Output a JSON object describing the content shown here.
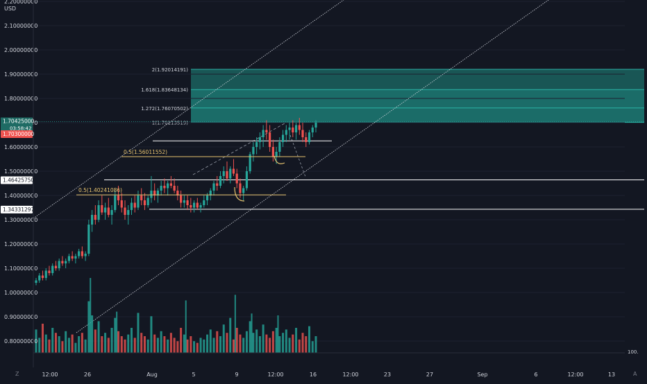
{
  "currency": "USD",
  "price_badges": {
    "last": "1.70425000",
    "countdown": "03:58:42",
    "prev": "1.70300000",
    "level_mid": "1.46425750",
    "level_low": "1.34331297"
  },
  "volume_scale_label": "100.",
  "bottom_left_icon": "Z",
  "bottom_right_icon": "A",
  "colors": {
    "background": "#131722",
    "up": "#26a69a",
    "down": "#ef5350",
    "fib_zone": "#1f8a80",
    "annotation": "#e8c46f",
    "line": "#ffffff"
  },
  "chart_data": {
    "type": "candlestick",
    "title": "",
    "ylim": [
      0.75,
      2.2
    ],
    "y_ticks": [
      0.8,
      0.9,
      1.0,
      1.1,
      1.2,
      1.3,
      1.4,
      1.5,
      1.6,
      1.7,
      1.8,
      1.9,
      2.0,
      2.1,
      2.2
    ],
    "y_tick_labels": [
      "0.80000000",
      "0.90000000",
      "1.00000000",
      "1.10000000",
      "1.20000000",
      "1.30000000",
      "1.40000000",
      "1.50000000",
      "1.60000000",
      "1.70000000",
      "1.80000000",
      "1.90000000",
      "2.00000000",
      "2.10000000",
      "2.20000000"
    ],
    "x_labels": [
      "12:00",
      "26",
      "Aug",
      "5",
      "9",
      "12:00",
      "16",
      "12:00",
      "23",
      "27",
      "Sep",
      "6",
      "12:00",
      "13"
    ],
    "fib_levels": [
      {
        "label": "1(1.70113519)",
        "value": 1.70113519
      },
      {
        "label": "1.272(1.76070502)",
        "value": 1.76070502
      },
      {
        "label": "1.618(1.83648134)",
        "value": 1.83648134
      },
      {
        "label": "2(1.92014191)",
        "value": 1.92014191
      }
    ],
    "retracements": [
      {
        "label": "0.5(1.56011552)",
        "value": 1.56011552
      },
      {
        "label": "0.5(1.40241086)",
        "value": 1.40241086
      }
    ],
    "horizontal_levels": [
      1.625,
      1.4642575,
      1.34331297
    ],
    "price_line": 1.70425,
    "volume_ylim": [
      0,
      100
    ],
    "candles": [
      [
        1.04,
        1.06,
        1.03,
        1.05
      ],
      [
        1.05,
        1.08,
        1.04,
        1.07
      ],
      [
        1.07,
        1.09,
        1.05,
        1.06
      ],
      [
        1.06,
        1.1,
        1.05,
        1.09
      ],
      [
        1.09,
        1.11,
        1.07,
        1.08
      ],
      [
        1.08,
        1.12,
        1.07,
        1.11
      ],
      [
        1.11,
        1.13,
        1.09,
        1.1
      ],
      [
        1.1,
        1.14,
        1.09,
        1.13
      ],
      [
        1.13,
        1.15,
        1.11,
        1.12
      ],
      [
        1.12,
        1.14,
        1.1,
        1.13
      ],
      [
        1.13,
        1.16,
        1.12,
        1.15
      ],
      [
        1.15,
        1.17,
        1.13,
        1.14
      ],
      [
        1.14,
        1.16,
        1.12,
        1.15
      ],
      [
        1.15,
        1.18,
        1.14,
        1.17
      ],
      [
        1.17,
        1.19,
        1.14,
        1.15
      ],
      [
        1.15,
        1.17,
        1.13,
        1.16
      ],
      [
        1.16,
        1.3,
        1.15,
        1.28
      ],
      [
        1.28,
        1.34,
        1.25,
        1.32
      ],
      [
        1.32,
        1.36,
        1.28,
        1.3
      ],
      [
        1.3,
        1.38,
        1.29,
        1.36
      ],
      [
        1.36,
        1.4,
        1.32,
        1.33
      ],
      [
        1.33,
        1.37,
        1.3,
        1.35
      ],
      [
        1.35,
        1.39,
        1.31,
        1.32
      ],
      [
        1.32,
        1.36,
        1.28,
        1.34
      ],
      [
        1.34,
        1.42,
        1.33,
        1.4
      ],
      [
        1.4,
        1.44,
        1.36,
        1.38
      ],
      [
        1.38,
        1.41,
        1.33,
        1.35
      ],
      [
        1.35,
        1.38,
        1.3,
        1.32
      ],
      [
        1.32,
        1.36,
        1.28,
        1.34
      ],
      [
        1.34,
        1.39,
        1.32,
        1.37
      ],
      [
        1.37,
        1.4,
        1.33,
        1.35
      ],
      [
        1.35,
        1.42,
        1.34,
        1.4
      ],
      [
        1.4,
        1.43,
        1.36,
        1.38
      ],
      [
        1.38,
        1.41,
        1.34,
        1.36
      ],
      [
        1.36,
        1.4,
        1.35,
        1.39
      ],
      [
        1.39,
        1.48,
        1.37,
        1.42
      ],
      [
        1.42,
        1.45,
        1.38,
        1.4
      ],
      [
        1.4,
        1.43,
        1.37,
        1.42
      ],
      [
        1.42,
        1.46,
        1.4,
        1.44
      ],
      [
        1.44,
        1.47,
        1.41,
        1.43
      ],
      [
        1.43,
        1.46,
        1.4,
        1.45
      ],
      [
        1.45,
        1.48,
        1.43,
        1.44
      ],
      [
        1.44,
        1.47,
        1.41,
        1.42
      ],
      [
        1.42,
        1.44,
        1.38,
        1.4
      ],
      [
        1.4,
        1.42,
        1.35,
        1.37
      ],
      [
        1.37,
        1.4,
        1.35,
        1.38
      ],
      [
        1.38,
        1.4,
        1.34,
        1.36
      ],
      [
        1.36,
        1.39,
        1.33,
        1.35
      ],
      [
        1.35,
        1.38,
        1.33,
        1.37
      ],
      [
        1.37,
        1.39,
        1.34,
        1.35
      ],
      [
        1.35,
        1.37,
        1.33,
        1.36
      ],
      [
        1.36,
        1.4,
        1.35,
        1.38
      ],
      [
        1.38,
        1.41,
        1.36,
        1.4
      ],
      [
        1.4,
        1.43,
        1.38,
        1.42
      ],
      [
        1.42,
        1.46,
        1.4,
        1.45
      ],
      [
        1.45,
        1.48,
        1.42,
        1.44
      ],
      [
        1.44,
        1.5,
        1.43,
        1.48
      ],
      [
        1.48,
        1.52,
        1.45,
        1.5
      ],
      [
        1.5,
        1.54,
        1.46,
        1.47
      ],
      [
        1.47,
        1.52,
        1.45,
        1.51
      ],
      [
        1.51,
        1.55,
        1.48,
        1.49
      ],
      [
        1.49,
        1.51,
        1.43,
        1.45
      ],
      [
        1.45,
        1.47,
        1.39,
        1.41
      ],
      [
        1.41,
        1.44,
        1.38,
        1.43
      ],
      [
        1.43,
        1.52,
        1.42,
        1.5
      ],
      [
        1.5,
        1.58,
        1.49,
        1.57
      ],
      [
        1.57,
        1.62,
        1.54,
        1.6
      ],
      [
        1.6,
        1.64,
        1.57,
        1.62
      ],
      [
        1.62,
        1.66,
        1.59,
        1.64
      ],
      [
        1.64,
        1.69,
        1.6,
        1.67
      ],
      [
        1.67,
        1.71,
        1.63,
        1.66
      ],
      [
        1.66,
        1.69,
        1.58,
        1.6
      ],
      [
        1.6,
        1.63,
        1.54,
        1.56
      ],
      [
        1.56,
        1.6,
        1.53,
        1.58
      ],
      [
        1.58,
        1.64,
        1.56,
        1.62
      ],
      [
        1.62,
        1.67,
        1.6,
        1.65
      ],
      [
        1.65,
        1.69,
        1.62,
        1.67
      ],
      [
        1.67,
        1.7,
        1.63,
        1.68
      ],
      [
        1.68,
        1.71,
        1.64,
        1.66
      ],
      [
        1.66,
        1.7,
        1.63,
        1.69
      ],
      [
        1.69,
        1.72,
        1.65,
        1.67
      ],
      [
        1.67,
        1.7,
        1.62,
        1.64
      ],
      [
        1.64,
        1.66,
        1.6,
        1.62
      ],
      [
        1.62,
        1.67,
        1.61,
        1.66
      ],
      [
        1.66,
        1.69,
        1.64,
        1.68
      ],
      [
        1.68,
        1.71,
        1.66,
        1.7
      ]
    ],
    "volumes": [
      28,
      18,
      35,
      22,
      16,
      30,
      24,
      20,
      14,
      26,
      18,
      22,
      12,
      20,
      24,
      16,
      62,
      45,
      28,
      38,
      20,
      24,
      18,
      30,
      42,
      26,
      20,
      16,
      22,
      30,
      18,
      48,
      24,
      20,
      16,
      44,
      22,
      18,
      26,
      20,
      16,
      24,
      18,
      14,
      30,
      22,
      16,
      20,
      14,
      12,
      18,
      16,
      22,
      28,
      18,
      26,
      20,
      34,
      24,
      42,
      16,
      30,
      22,
      18,
      26,
      38,
      24,
      28,
      20,
      34,
      22,
      18,
      26,
      30,
      20,
      24,
      28,
      18,
      22,
      30,
      16,
      24,
      20,
      32,
      14,
      20
    ],
    "big_volume_spikes": [
      [
        16,
        80
      ],
      [
        24,
        44
      ],
      [
        45,
        56
      ],
      [
        60,
        62
      ],
      [
        65,
        42
      ],
      [
        73,
        40
      ]
    ]
  }
}
